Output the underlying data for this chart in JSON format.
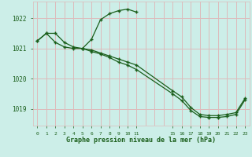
{
  "title": "Graphe pression niveau de la mer (hPa)",
  "background_color": "#cceee8",
  "grid_color": "#ddbbbb",
  "line_color": "#1a5e1a",
  "tick_color": "#1a5e1a",
  "title_color": "#1a5e1a",
  "ylim": [
    1018.45,
    1022.55
  ],
  "xlim": [
    -0.5,
    23.5
  ],
  "yticks": [
    1019,
    1020,
    1021,
    1022
  ],
  "xticks": [
    0,
    1,
    2,
    3,
    4,
    5,
    6,
    7,
    8,
    9,
    10,
    11,
    15,
    16,
    17,
    18,
    19,
    20,
    21,
    22,
    23
  ],
  "all_gridlines_x": [
    0,
    1,
    2,
    3,
    4,
    5,
    6,
    7,
    8,
    9,
    10,
    11,
    12,
    13,
    14,
    15,
    16,
    17,
    18,
    19,
    20,
    21,
    22,
    23
  ],
  "series": [
    {
      "x": [
        0,
        1,
        2,
        3,
        4,
        5,
        6,
        7,
        8,
        9,
        10,
        11
      ],
      "y": [
        1021.25,
        1021.5,
        1021.5,
        1021.2,
        1021.05,
        1021.0,
        1021.3,
        1021.95,
        1022.15,
        1022.25,
        1022.3,
        1022.2
      ]
    },
    {
      "x": [
        0,
        1,
        2,
        3,
        4,
        5,
        6,
        7,
        8,
        9,
        10,
        11,
        15,
        16,
        17,
        18,
        19,
        20,
        21,
        22,
        23
      ],
      "y": [
        1021.25,
        1021.5,
        1021.2,
        1021.05,
        1021.0,
        1021.0,
        1020.95,
        1020.85,
        1020.75,
        1020.65,
        1020.55,
        1020.45,
        1019.6,
        1019.4,
        1019.05,
        1018.82,
        1018.78,
        1018.78,
        1018.82,
        1018.88,
        1019.35
      ]
    },
    {
      "x": [
        5,
        6,
        7,
        8,
        9,
        10,
        11,
        15,
        16,
        17,
        18,
        19,
        20,
        21,
        22,
        23
      ],
      "y": [
        1021.0,
        1020.9,
        1020.82,
        1020.7,
        1020.55,
        1020.45,
        1020.3,
        1019.5,
        1019.28,
        1018.95,
        1018.75,
        1018.72,
        1018.72,
        1018.75,
        1018.82,
        1019.3
      ]
    }
  ]
}
